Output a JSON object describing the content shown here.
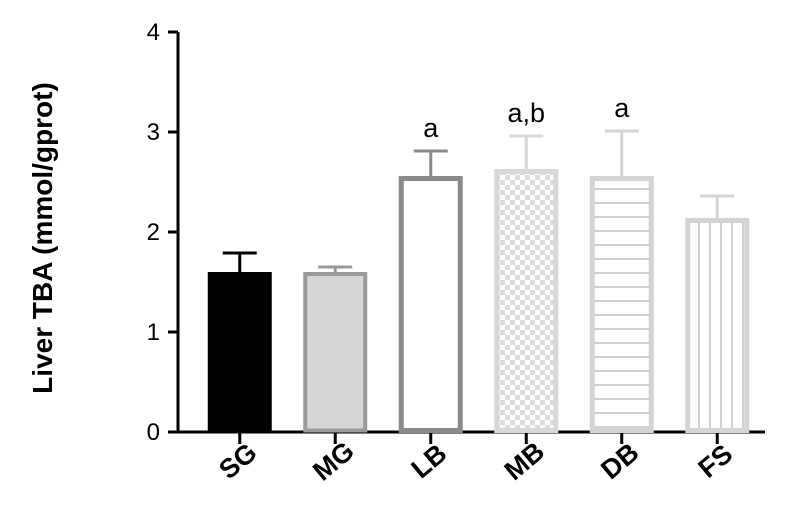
{
  "chart_data": {
    "type": "bar",
    "title": "",
    "ylabel": "Liver TBA (mmol/gprot)",
    "xlabel": "",
    "ylim": [
      0,
      4
    ],
    "yticks": [
      "0",
      "1",
      "2",
      "3",
      "4"
    ],
    "categories": [
      "SG",
      "MG",
      "LB",
      "MB",
      "DB",
      "FS"
    ],
    "values": [
      1.6,
      1.6,
      2.56,
      2.63,
      2.56,
      2.14
    ],
    "errors": [
      0.19,
      0.05,
      0.25,
      0.33,
      0.45,
      0.22
    ],
    "annotations": [
      "",
      "",
      "a",
      "a,b",
      "a",
      ""
    ],
    "styles": [
      {
        "fill": "solid",
        "color": "#000000"
      },
      {
        "fill": "solid",
        "color": "#d6d6d6",
        "stroke": "#9a9a9a"
      },
      {
        "fill": "open",
        "stroke": "#8a8a8a"
      },
      {
        "fill": "checker",
        "stroke": "#d8d8d8"
      },
      {
        "fill": "horizontal-lines",
        "stroke": "#d4d4d4"
      },
      {
        "fill": "vertical-lines",
        "stroke": "#d4d4d4"
      }
    ],
    "grid": false,
    "legend": "none"
  }
}
